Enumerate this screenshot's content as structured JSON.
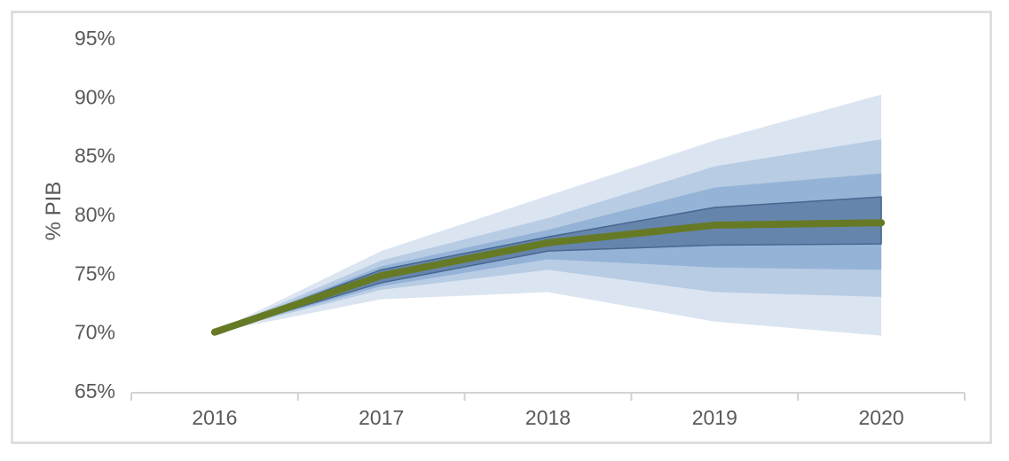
{
  "chart_data": {
    "type": "area",
    "subtype": "fan-chart",
    "title": "",
    "xlabel": "",
    "ylabel": "% PIB",
    "categories": [
      "2016",
      "2017",
      "2018",
      "2019",
      "2020"
    ],
    "ylim": [
      65,
      95
    ],
    "y_ticks": {
      "values": [
        95,
        90,
        85,
        80,
        75,
        70,
        65
      ],
      "labels": [
        "95%",
        "90%",
        "85%",
        "80%",
        "75%",
        "70%",
        "65%"
      ]
    },
    "grid": false,
    "legend": "none",
    "center_line": {
      "name": "central-projection",
      "values": [
        70.0,
        74.8,
        77.6,
        79.1,
        79.3
      ],
      "color": "#667a26"
    },
    "bands": [
      {
        "name": "confidence-band-outer",
        "upper": [
          70.0,
          76.9,
          81.6,
          86.3,
          90.2
        ],
        "lower": [
          70.0,
          72.8,
          73.4,
          70.9,
          69.7
        ],
        "color": "#dbe5f1"
      },
      {
        "name": "confidence-band-3",
        "upper": [
          70.0,
          76.1,
          79.7,
          84.1,
          86.4
        ],
        "lower": [
          70.0,
          73.6,
          75.3,
          73.4,
          73.0
        ],
        "color": "#b8cce4"
      },
      {
        "name": "confidence-band-2",
        "upper": [
          70.0,
          75.6,
          78.7,
          82.3,
          83.5
        ],
        "lower": [
          70.0,
          73.9,
          76.2,
          75.5,
          75.3
        ],
        "color": "#95b3d7"
      },
      {
        "name": "confidence-band-inner",
        "upper": [
          70.0,
          75.3,
          78.1,
          80.6,
          81.5
        ],
        "lower": [
          70.0,
          74.2,
          76.9,
          77.4,
          77.5
        ],
        "color": "#6585ad",
        "stroke": "#47678f"
      }
    ],
    "axis_color": "#d2d2d2",
    "frame_color": "#d9d9d9",
    "text_color": "#595959"
  }
}
